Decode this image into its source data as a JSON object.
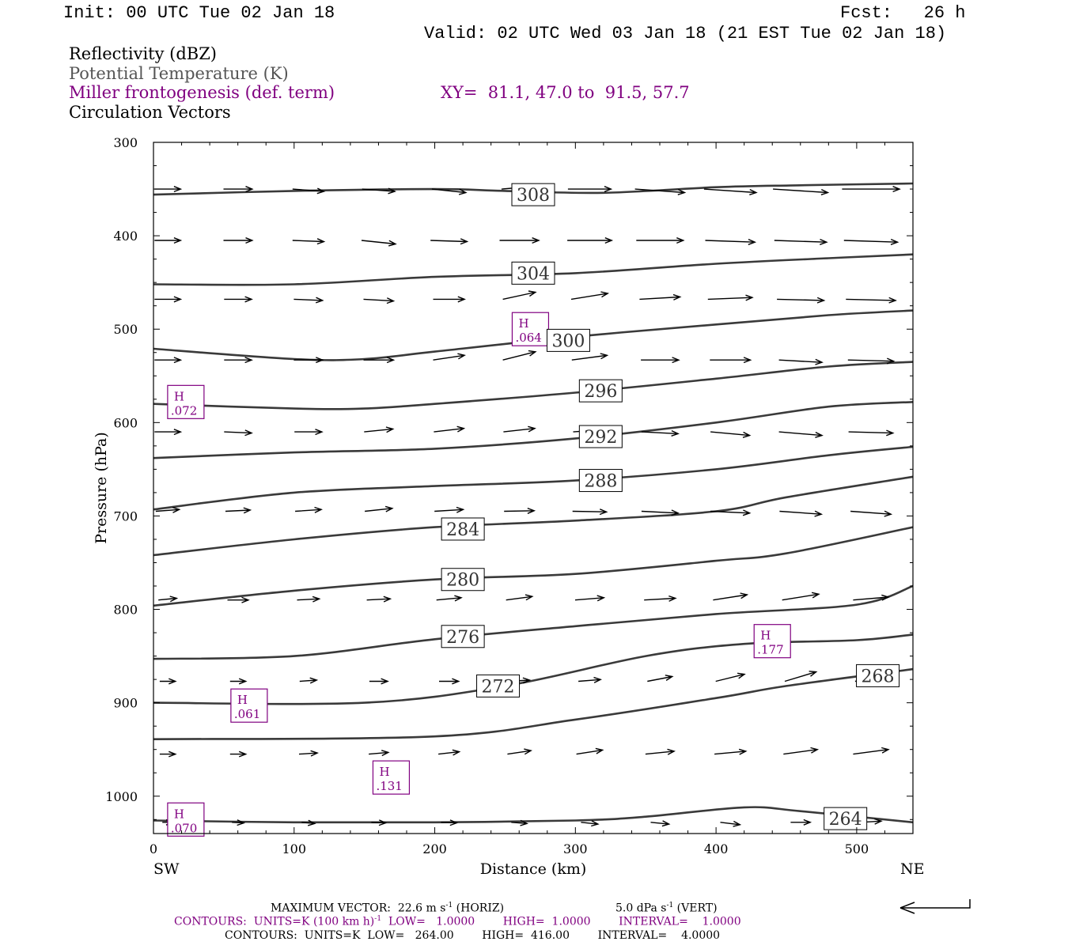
{
  "header": {
    "init": "Init: 00 UTC Tue 02 Jan 18",
    "fcst": "Fcst:   26 h",
    "valid": "Valid: 02 UTC Wed 03 Jan 18 (21 EST Tue 02 Jan 18)"
  },
  "legend": {
    "line1": "Reflectivity (dBZ)",
    "line2": "Potential Temperature (K)",
    "line3": "Miller frontogenesis (def. term)",
    "xy": "XY=  81.1, 47.0 to  91.5, 57.7",
    "line4": "Circulation Vectors"
  },
  "footer": {
    "max_vector_a": "MAXIMUM VECTOR:  22.6 m s",
    "max_vector_sup1": "-1",
    "max_vector_b": " (HORIZ)",
    "max_vector_c": "5.0 dPa s",
    "max_vector_sup2": "-1",
    "max_vector_d": " (VERT)",
    "contours1_a": "CONTOURS:  UNITS=K (100 km h)",
    "contours1_sup": "-1",
    "contours1_b": "  LOW=   1.0000        HIGH=  1.0000        INTERVAL=    1.0000",
    "contours2": "CONTOURS:  UNITS=K  LOW=   264.00        HIGH=  416.00        INTERVAL=    4.0000"
  },
  "colors": {
    "theta": "#3a3a3a",
    "frontogenesis": "#800080",
    "vectors": "#000000"
  },
  "chart_data": {
    "type": "cross-section",
    "xlabel": "Distance (km)",
    "ylabel": "Pressure (hPa)",
    "xlim": [
      0,
      540
    ],
    "ylim": [
      1040,
      300
    ],
    "x_ticks": [
      0,
      100,
      200,
      300,
      400,
      500
    ],
    "y_ticks": [
      300,
      400,
      500,
      600,
      700,
      800,
      900,
      1000
    ],
    "x_end_labels": {
      "left": "SW",
      "right": "NE"
    },
    "theta_contours": [
      {
        "level": 308,
        "label_at": [
          270,
          356
        ],
        "points": [
          [
            0,
            356
          ],
          [
            100,
            352
          ],
          [
            200,
            350
          ],
          [
            250,
            352
          ],
          [
            320,
            354
          ],
          [
            400,
            348
          ],
          [
            460,
            346
          ],
          [
            540,
            344
          ]
        ]
      },
      {
        "level": 304,
        "label_at": [
          270,
          440
        ],
        "points": [
          [
            0,
            452
          ],
          [
            100,
            452
          ],
          [
            200,
            444
          ],
          [
            300,
            440
          ],
          [
            400,
            430
          ],
          [
            480,
            424
          ],
          [
            540,
            420
          ]
        ]
      },
      {
        "level": 300,
        "label_at": [
          295,
          512
        ],
        "points": [
          [
            0,
            521
          ],
          [
            100,
            532
          ],
          [
            150,
            532
          ],
          [
            200,
            524
          ],
          [
            300,
            508
          ],
          [
            400,
            495
          ],
          [
            480,
            485
          ],
          [
            540,
            480
          ]
        ]
      },
      {
        "level": 296,
        "label_at": [
          318,
          566
        ],
        "points": [
          [
            0,
            580
          ],
          [
            100,
            585
          ],
          [
            150,
            585
          ],
          [
            200,
            580
          ],
          [
            300,
            568
          ],
          [
            400,
            553
          ],
          [
            480,
            540
          ],
          [
            540,
            535
          ]
        ]
      },
      {
        "level": 292,
        "label_at": [
          318,
          615
        ],
        "points": [
          [
            0,
            638
          ],
          [
            100,
            632
          ],
          [
            200,
            628
          ],
          [
            300,
            617
          ],
          [
            400,
            600
          ],
          [
            480,
            583
          ],
          [
            540,
            578
          ]
        ]
      },
      {
        "level": 288,
        "label_at": [
          318,
          662
        ],
        "points": [
          [
            0,
            693
          ],
          [
            100,
            675
          ],
          [
            200,
            668
          ],
          [
            300,
            662
          ],
          [
            400,
            650
          ],
          [
            480,
            635
          ],
          [
            540,
            626
          ]
        ]
      },
      {
        "level": 284,
        "label_at": [
          220,
          714
        ],
        "points": [
          [
            0,
            742
          ],
          [
            100,
            725
          ],
          [
            200,
            712
          ],
          [
            300,
            705
          ],
          [
            400,
            695
          ],
          [
            450,
            680
          ],
          [
            540,
            658
          ]
        ]
      },
      {
        "level": 280,
        "label_at": [
          220,
          768
        ],
        "points": [
          [
            0,
            796
          ],
          [
            100,
            780
          ],
          [
            200,
            768
          ],
          [
            300,
            762
          ],
          [
            400,
            748
          ],
          [
            450,
            740
          ],
          [
            540,
            712
          ]
        ]
      },
      {
        "level": 276,
        "label_at": [
          220,
          829
        ],
        "points": [
          [
            0,
            853
          ],
          [
            100,
            850
          ],
          [
            200,
            832
          ],
          [
            300,
            818
          ],
          [
            400,
            805
          ],
          [
            500,
            795
          ],
          [
            540,
            775
          ]
        ]
      },
      {
        "level": 272,
        "label_at": [
          245,
          882
        ],
        "points": [
          [
            0,
            900
          ],
          [
            150,
            900
          ],
          [
            250,
            882
          ],
          [
            350,
            850
          ],
          [
            420,
            837
          ],
          [
            500,
            833
          ],
          [
            540,
            827
          ]
        ]
      },
      {
        "level": 268,
        "label_at": [
          515,
          871
        ],
        "points": [
          [
            0,
            939
          ],
          [
            200,
            936
          ],
          [
            300,
            918
          ],
          [
            400,
            895
          ],
          [
            450,
            882
          ],
          [
            540,
            864
          ]
        ]
      },
      {
        "level": 264,
        "label_at": [
          492,
          1024
        ],
        "points": [
          [
            0,
            1026
          ],
          [
            100,
            1028
          ],
          [
            200,
            1028
          ],
          [
            300,
            1026
          ],
          [
            350,
            1022
          ],
          [
            420,
            1012
          ],
          [
            460,
            1016
          ],
          [
            540,
            1028
          ]
        ]
      }
    ],
    "frontogenesis_highs": [
      {
        "label": "H",
        "value": ".072",
        "x": 23,
        "p": 578
      },
      {
        "label": "H",
        "value": ".064",
        "x": 268,
        "p": 500
      },
      {
        "label": "H",
        "value": ".061",
        "x": 68,
        "p": 903
      },
      {
        "label": "H",
        "value": ".131",
        "x": 169,
        "p": 980
      },
      {
        "label": "H",
        "value": ".177",
        "x": 440,
        "p": 834
      },
      {
        "label": "H",
        "value": ".070",
        "x": 23,
        "p": 1025
      }
    ],
    "vector_pressures": [
      350,
      405,
      468,
      533,
      610,
      695,
      790,
      877,
      955,
      1028
    ],
    "vector_x": [
      10,
      60,
      110,
      160,
      210,
      260,
      310,
      360,
      410,
      460,
      510
    ],
    "vectors": [
      [
        [
          20,
          0
        ],
        [
          22,
          0
        ],
        [
          24,
          0.4
        ],
        [
          25,
          0.4
        ],
        [
          26,
          0.6
        ],
        [
          27,
          -0.5
        ],
        [
          33,
          0
        ],
        [
          38,
          0.6
        ],
        [
          40,
          0.6
        ],
        [
          42,
          0.6
        ],
        [
          44,
          0
        ]
      ],
      [
        [
          20,
          0
        ],
        [
          22,
          0
        ],
        [
          24,
          0.2
        ],
        [
          26,
          0.6
        ],
        [
          28,
          0.2
        ],
        [
          30,
          0
        ],
        [
          34,
          0
        ],
        [
          36,
          0
        ],
        [
          38,
          0.3
        ],
        [
          40,
          0.3
        ],
        [
          41,
          0.3
        ]
      ],
      [
        [
          20,
          0
        ],
        [
          21,
          0
        ],
        [
          22,
          0.2
        ],
        [
          23,
          0.3
        ],
        [
          24,
          0
        ],
        [
          25,
          -1.2
        ],
        [
          28,
          -1.0
        ],
        [
          31,
          -0.4
        ],
        [
          34,
          -0.3
        ],
        [
          36,
          0.2
        ],
        [
          38,
          0.2
        ]
      ],
      [
        [
          20,
          0
        ],
        [
          21,
          0
        ],
        [
          22,
          0
        ],
        [
          23,
          0
        ],
        [
          24,
          -0.8
        ],
        [
          25,
          -1.4
        ],
        [
          27,
          -0.8
        ],
        [
          29,
          0
        ],
        [
          31,
          0
        ],
        [
          33,
          0.4
        ],
        [
          35,
          0.2
        ]
      ],
      [
        [
          20,
          0
        ],
        [
          21,
          0.2
        ],
        [
          21,
          0
        ],
        [
          22,
          -0.5
        ],
        [
          23,
          -0.6
        ],
        [
          24,
          -0.6
        ],
        [
          25,
          -0.4
        ],
        [
          28,
          0.3
        ],
        [
          30,
          0.6
        ],
        [
          33,
          0.6
        ],
        [
          34,
          0.2
        ]
      ],
      [
        [
          18,
          -0.3
        ],
        [
          19,
          -0.2
        ],
        [
          20,
          -0.3
        ],
        [
          21,
          -0.5
        ],
        [
          22,
          -0.3
        ],
        [
          23,
          -0.1
        ],
        [
          26,
          0.1
        ],
        [
          28,
          0.3
        ],
        [
          30,
          0.3
        ],
        [
          32,
          0.5
        ],
        [
          31,
          0.5
        ]
      ],
      [
        [
          14,
          -0.3
        ],
        [
          16,
          0
        ],
        [
          17,
          -0.2
        ],
        [
          18,
          -0.2
        ],
        [
          19,
          -0.4
        ],
        [
          20,
          -0.6
        ],
        [
          22,
          -0.4
        ],
        [
          24,
          -0.3
        ],
        [
          26,
          -0.9
        ],
        [
          28,
          -1.0
        ],
        [
          27,
          -0.5
        ]
      ],
      [
        [
          12,
          0
        ],
        [
          12,
          0
        ],
        [
          13,
          -0.2
        ],
        [
          14,
          0
        ],
        [
          15,
          0
        ],
        [
          16,
          -0.2
        ],
        [
          17,
          -0.3
        ],
        [
          19,
          -0.8
        ],
        [
          22,
          -1.2
        ],
        [
          24,
          -1.6
        ],
        [
          24,
          -0.8
        ]
      ],
      [
        [
          12,
          0
        ],
        [
          12,
          0
        ],
        [
          14,
          -0.2
        ],
        [
          15,
          -0.3
        ],
        [
          16,
          -0.4
        ],
        [
          18,
          -0.6
        ],
        [
          20,
          -0.7
        ],
        [
          22,
          -0.5
        ],
        [
          24,
          -0.5
        ],
        [
          26,
          -0.8
        ],
        [
          27,
          -0.8
        ]
      ],
      [
        [
          8,
          0
        ],
        [
          9,
          0.1
        ],
        [
          10,
          0.2
        ],
        [
          11,
          0.1
        ],
        [
          12,
          0.1
        ],
        [
          12,
          0.2
        ],
        [
          13,
          0.3
        ],
        [
          14,
          0.3
        ],
        [
          15,
          0.4
        ],
        [
          15,
          0
        ],
        [
          16,
          -0.2
        ]
      ]
    ]
  }
}
